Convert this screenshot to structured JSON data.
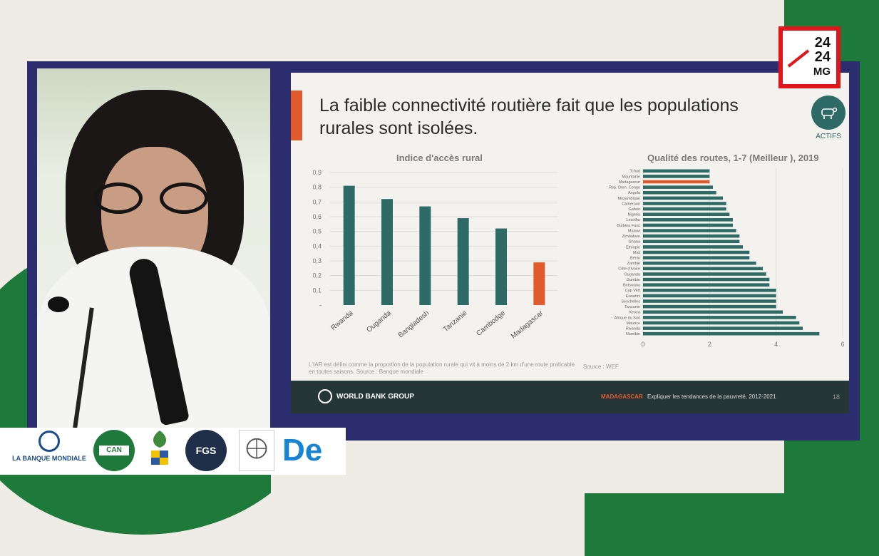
{
  "logo_2424": {
    "line1": "24",
    "line2": "24",
    "line3": "MG"
  },
  "slide": {
    "title": "La faible connectivité routière fait que les populations rurales sont isolées.",
    "badge_label": "ACTIFS",
    "footnote": "L'IAR est défini comme la proportion de la population rurale qui vit à moins de 2 km d'une route praticable en toutes saisons. Source : Banque mondiale",
    "source_right": "Source : WEF",
    "footer_org": "WORLD BANK GROUP",
    "footer_country": "MADAGASCAR",
    "footer_subtitle": "Expliquer les tendances de la pauvreté, 2012-2021",
    "page_number": "18"
  },
  "logos": {
    "banque_mondiale": "LA BANQUE MONDIALE",
    "can": "CAN",
    "fgs": "FGS",
    "de": "De"
  },
  "colors": {
    "bar": "#2e6b66",
    "highlight": "#e05a2b",
    "footer": "#263535",
    "frame": "#2c2d6e",
    "brand_red": "#e3151a",
    "green": "#1e7a3a"
  },
  "chart_data": [
    {
      "type": "bar",
      "title": "Indice d'accès rural",
      "categories": [
        "Rwanda",
        "Ouganda",
        "Bangladesh",
        "Tanzanie",
        "Cambodge",
        "Madagascar"
      ],
      "values": [
        0.81,
        0.72,
        0.67,
        0.59,
        0.52,
        0.29
      ],
      "highlight": "Madagascar",
      "ylim": [
        0,
        0.9
      ],
      "yticks": [
        "-",
        "0,1",
        "0,2",
        "0,3",
        "0,4",
        "0,5",
        "0,6",
        "0,7",
        "0,8",
        "0,9"
      ],
      "grid": true
    },
    {
      "type": "bar",
      "orientation": "horizontal",
      "title": "Qualité des routes, 1-7 (Meilleur ), 2019",
      "categories": [
        "Tchad",
        "Mauritanie",
        "Madagascar",
        "Rép. Dém. Congo",
        "Angola",
        "Mozambique",
        "Cameroun",
        "Gabon",
        "Nigeria",
        "Lesotho",
        "Burkina Faso",
        "Malawi",
        "Zimbabwe",
        "Ghana",
        "Ethiopie",
        "Mali",
        "Bénin",
        "Zambie",
        "Côte d'Ivoire",
        "Ouganda",
        "Gambie",
        "Botswana",
        "Cap Vert",
        "Eswatini",
        "Seychelles",
        "Tanzanie",
        "Kenya",
        "Afrique du Sud",
        "Maurice",
        "Rwanda",
        "Namibie"
      ],
      "values": [
        2.0,
        2.0,
        2.0,
        2.1,
        2.2,
        2.4,
        2.5,
        2.5,
        2.6,
        2.7,
        2.7,
        2.8,
        2.9,
        2.9,
        3.0,
        3.2,
        3.2,
        3.4,
        3.6,
        3.7,
        3.8,
        3.8,
        4.0,
        4.0,
        4.0,
        4.0,
        4.2,
        4.6,
        4.7,
        4.8,
        5.3
      ],
      "highlight": "Madagascar",
      "xlim": [
        0,
        6
      ],
      "xticks": [
        "0",
        "2",
        "4",
        "6"
      ],
      "grid": true
    }
  ]
}
